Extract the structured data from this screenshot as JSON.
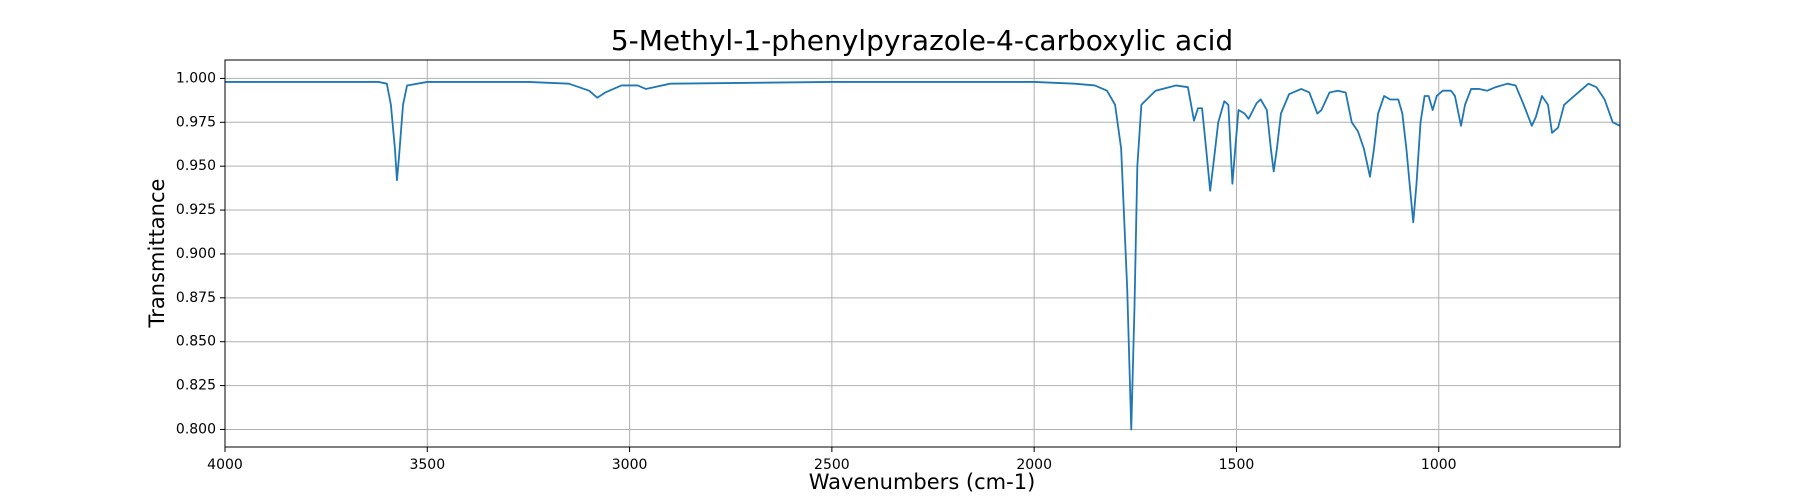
{
  "chart_data": {
    "type": "line",
    "title": "5-Methyl-1-phenylpyrazole-4-carboxylic acid",
    "x_label": "Wavenumbers (cm-1)",
    "y_label": "Transmittance",
    "color": "#1f77b4",
    "grid": true,
    "xlim": [
      4000,
      552
    ],
    "ylim": [
      0.79,
      1.0105
    ],
    "xticks": [
      4000,
      3500,
      3000,
      2500,
      2000,
      1500,
      1000
    ],
    "yticks": [
      {
        "value": 0.8,
        "label": "0.800"
      },
      {
        "value": 0.825,
        "label": "0.825"
      },
      {
        "value": 0.85,
        "label": "0.850"
      },
      {
        "value": 0.875,
        "label": "0.875"
      },
      {
        "value": 0.9,
        "label": "0.900"
      },
      {
        "value": 0.925,
        "label": "0.925"
      },
      {
        "value": 0.95,
        "label": "0.950"
      },
      {
        "value": 0.975,
        "label": "0.975"
      },
      {
        "value": 1.0,
        "label": "1.000"
      }
    ],
    "x": [
      4000,
      3800,
      3620,
      3600,
      3590,
      3580,
      3575,
      3570,
      3560,
      3550,
      3500,
      3400,
      3250,
      3150,
      3100,
      3080,
      3060,
      3020,
      2980,
      2960,
      2940,
      2900,
      2500,
      2000,
      1900,
      1850,
      1820,
      1800,
      1785,
      1770,
      1760,
      1752,
      1745,
      1735,
      1700,
      1650,
      1620,
      1605,
      1595,
      1585,
      1575,
      1565,
      1555,
      1545,
      1530,
      1520,
      1510,
      1503,
      1495,
      1480,
      1470,
      1450,
      1440,
      1425,
      1415,
      1408,
      1400,
      1390,
      1370,
      1340,
      1320,
      1300,
      1290,
      1270,
      1250,
      1230,
      1215,
      1200,
      1185,
      1170,
      1160,
      1150,
      1135,
      1120,
      1100,
      1090,
      1080,
      1070,
      1063,
      1055,
      1045,
      1035,
      1025,
      1015,
      1005,
      990,
      970,
      960,
      945,
      935,
      920,
      900,
      880,
      860,
      830,
      810,
      790,
      770,
      760,
      745,
      730,
      720,
      705,
      690,
      670,
      650,
      630,
      610,
      590,
      570,
      552
    ],
    "values": [
      0.998,
      0.998,
      0.998,
      0.997,
      0.985,
      0.96,
      0.942,
      0.955,
      0.985,
      0.996,
      0.998,
      0.998,
      0.998,
      0.997,
      0.993,
      0.989,
      0.992,
      0.996,
      0.996,
      0.994,
      0.995,
      0.997,
      0.998,
      0.998,
      0.997,
      0.996,
      0.993,
      0.985,
      0.96,
      0.88,
      0.8,
      0.87,
      0.95,
      0.985,
      0.993,
      0.996,
      0.995,
      0.976,
      0.983,
      0.983,
      0.96,
      0.936,
      0.955,
      0.975,
      0.987,
      0.985,
      0.94,
      0.96,
      0.982,
      0.98,
      0.977,
      0.986,
      0.988,
      0.982,
      0.96,
      0.947,
      0.96,
      0.98,
      0.991,
      0.994,
      0.992,
      0.98,
      0.982,
      0.992,
      0.993,
      0.992,
      0.975,
      0.97,
      0.96,
      0.944,
      0.96,
      0.98,
      0.99,
      0.988,
      0.988,
      0.98,
      0.96,
      0.935,
      0.918,
      0.94,
      0.975,
      0.99,
      0.99,
      0.982,
      0.99,
      0.993,
      0.993,
      0.99,
      0.973,
      0.985,
      0.994,
      0.994,
      0.993,
      0.995,
      0.997,
      0.996,
      0.985,
      0.973,
      0.978,
      0.99,
      0.985,
      0.969,
      0.972,
      0.985,
      0.989,
      0.993,
      0.997,
      0.995,
      0.988,
      0.975,
      0.973
    ]
  }
}
